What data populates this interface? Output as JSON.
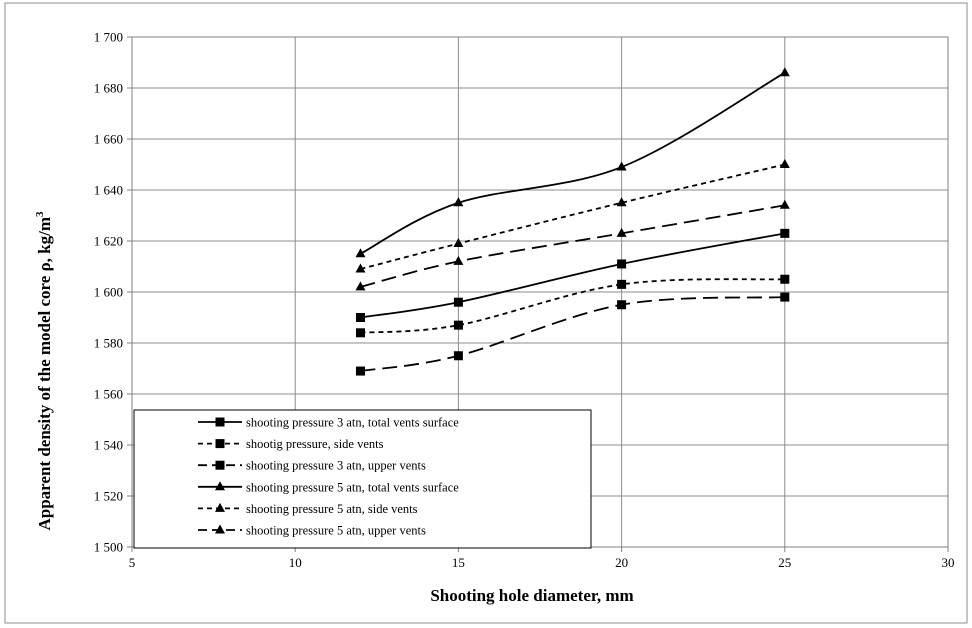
{
  "chart_data": {
    "type": "line",
    "title": "",
    "xlabel": "Shooting hole diameter, mm",
    "ylabel_main": "Apparent density of the model core ρ, kg/m",
    "ylabel_sup": "3",
    "xlim": [
      5,
      30
    ],
    "ylim": [
      1500,
      1700
    ],
    "x_ticks": [
      5,
      10,
      15,
      20,
      25,
      30
    ],
    "x_tick_labels": [
      "5",
      "10",
      "15",
      "20",
      "25",
      "30"
    ],
    "y_ticks": [
      1500,
      1520,
      1540,
      1560,
      1580,
      1600,
      1620,
      1640,
      1660,
      1680,
      1700
    ],
    "y_tick_labels": [
      "1 500",
      "1 520",
      "1 540",
      "1 560",
      "1 580",
      "1 600",
      "1 620",
      "1 640",
      "1 660",
      "1 680",
      "1 700"
    ],
    "grid": true,
    "legend_position": "bottom-left",
    "x": [
      12,
      15,
      20,
      25
    ],
    "series": [
      {
        "name": "shooting pressure 3 atn, total vents surface",
        "values": [
          1590,
          1596,
          1611,
          1623
        ],
        "marker": "square",
        "dash": "solid"
      },
      {
        "name": "shootig pressure, side vents",
        "values": [
          1584,
          1587,
          1603,
          1605
        ],
        "marker": "square",
        "dash": "short"
      },
      {
        "name": "shooting pressure 3 atn, upper vents",
        "values": [
          1569,
          1575,
          1595,
          1598
        ],
        "marker": "square",
        "dash": "long"
      },
      {
        "name": "shooting pressure 5 atn, total vents surface",
        "values": [
          1615,
          1635,
          1649,
          1686
        ],
        "marker": "triangle",
        "dash": "solid"
      },
      {
        "name": "shooting pressure 5 atn, side vents",
        "values": [
          1609,
          1619,
          1635,
          1650
        ],
        "marker": "triangle",
        "dash": "short"
      },
      {
        "name": "shooting pressure 5 atn, upper vents",
        "values": [
          1602,
          1612,
          1623,
          1634
        ],
        "marker": "triangle",
        "dash": "long"
      }
    ]
  }
}
